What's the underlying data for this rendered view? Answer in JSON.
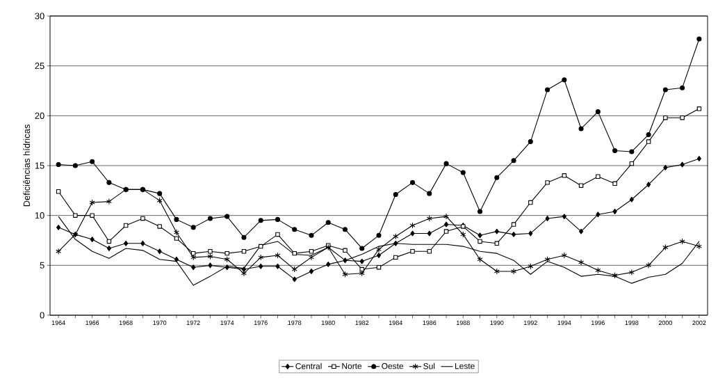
{
  "chart_data": {
    "type": "line",
    "ylabel": "Deficiências hídricas",
    "categories": [
      "1964",
      null,
      "1966",
      null,
      "1968",
      null,
      "1970",
      null,
      "1972",
      null,
      "1974",
      null,
      "1976",
      null,
      "1978",
      null,
      "1980",
      null,
      "1982",
      null,
      "1984",
      null,
      "1986",
      null,
      "1988",
      null,
      "1990",
      null,
      "1992",
      null,
      "1994",
      null,
      "1996",
      null,
      "1998",
      null,
      "2000",
      null,
      "2002"
    ],
    "series": [
      {
        "name": "Central",
        "color": "#000000",
        "marker": "diamond",
        "values": [
          8.8,
          8.1,
          7.6,
          6.7,
          7.2,
          7.2,
          6.4,
          5.6,
          4.8,
          5.0,
          4.8,
          4.6,
          4.9,
          4.9,
          3.6,
          4.4,
          5.1,
          5.5,
          5.4,
          6.0,
          7.2,
          8.2,
          8.2,
          9.1,
          9.0,
          8.0,
          8.4,
          8.1,
          8.2,
          9.7,
          9.9,
          8.4,
          10.1,
          10.4,
          11.6,
          13.1,
          14.8,
          15.1,
          15.7
        ]
      },
      {
        "name": "Norte",
        "color": "#000000",
        "marker": "square",
        "values": [
          12.4,
          10.0,
          10.0,
          7.4,
          9.0,
          9.7,
          8.9,
          7.7,
          6.2,
          6.4,
          6.2,
          6.4,
          6.9,
          8.1,
          6.2,
          6.4,
          7.0,
          6.5,
          4.6,
          4.8,
          5.8,
          6.4,
          6.4,
          8.4,
          8.9,
          7.4,
          7.2,
          9.1,
          11.3,
          13.3,
          14.0,
          13.0,
          13.9,
          13.2,
          15.2,
          17.4,
          19.8,
          19.8,
          20.7
        ]
      },
      {
        "name": "Oeste",
        "color": "#000000",
        "marker": "circle",
        "values": [
          15.1,
          15.0,
          15.4,
          13.3,
          12.6,
          12.6,
          12.2,
          9.6,
          8.8,
          9.7,
          9.9,
          7.8,
          9.5,
          9.6,
          8.6,
          8.0,
          9.3,
          8.6,
          6.7,
          8.0,
          12.1,
          13.3,
          12.2,
          15.2,
          14.3,
          10.4,
          13.8,
          15.5,
          17.4,
          22.6,
          23.6,
          18.7,
          20.4,
          16.5,
          16.4,
          18.1,
          22.6,
          22.8,
          27.7
        ]
      },
      {
        "name": "Sul",
        "color": "#000000",
        "marker": "cross",
        "values": [
          6.4,
          8.1,
          11.3,
          11.4,
          12.6,
          12.6,
          11.5,
          8.3,
          5.8,
          5.9,
          5.6,
          4.2,
          5.8,
          6.0,
          4.6,
          5.8,
          6.8,
          4.1,
          4.2,
          6.6,
          7.9,
          9.0,
          9.7,
          9.9,
          8.1,
          5.6,
          4.4,
          4.4,
          4.9,
          5.6,
          6.0,
          5.3,
          4.5,
          4.0,
          4.3,
          5.0,
          6.8,
          7.4,
          6.9
        ]
      },
      {
        "name": "Leste",
        "color": "#000000",
        "marker": "none",
        "values": [
          9.9,
          7.6,
          6.4,
          5.7,
          6.7,
          6.5,
          5.6,
          5.4,
          3.0,
          3.9,
          4.9,
          4.7,
          7.0,
          7.4,
          6.1,
          6.0,
          6.8,
          5.5,
          6.1,
          6.9,
          7.2,
          7.1,
          7.1,
          7.1,
          6.9,
          6.4,
          6.2,
          5.5,
          4.1,
          5.4,
          4.8,
          3.9,
          4.1,
          3.9,
          3.2,
          3.8,
          4.1,
          5.2,
          7.4
        ]
      }
    ],
    "ylim": [
      0,
      30
    ],
    "yticks": [
      0,
      5,
      10,
      15,
      20,
      25,
      30
    ],
    "grid": "y",
    "legend": "bottom",
    "line_style": "solid"
  }
}
